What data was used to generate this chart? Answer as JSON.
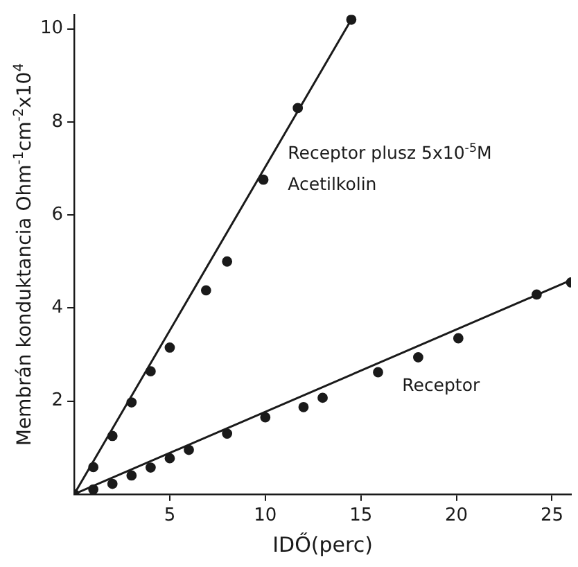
{
  "chart_data": {
    "type": "scatter",
    "xlabel": "IDŐ(perc)",
    "ylabel": "Membrán konduktancia Ohm$^{-1}$cm$^{-2}$x10$^{4}$",
    "xlim": [
      0,
      26
    ],
    "ylim": [
      0,
      10.3
    ],
    "xticks": [
      5,
      10,
      15,
      20,
      25
    ],
    "yticks": [
      2,
      4,
      6,
      8,
      10
    ],
    "grid": false,
    "legend": false,
    "marker": "circle",
    "series": [
      {
        "color": "#1a1a1a",
        "x": [
          0,
          1,
          2,
          3,
          4,
          5,
          6.9,
          8,
          9.9,
          11.7,
          14.5
        ],
        "values": [
          0,
          0.58,
          1.25,
          1.97,
          2.64,
          3.15,
          4.38,
          5.0,
          6.76,
          8.3,
          10.2
        ]
      },
      {
        "color": "#1a1a1a",
        "x": [
          1,
          2,
          3,
          4,
          5,
          6,
          8,
          10,
          12,
          13,
          15.9,
          18,
          20.1,
          24.2,
          26
        ],
        "values": [
          0.1,
          0.22,
          0.4,
          0.57,
          0.77,
          0.95,
          1.3,
          1.65,
          1.87,
          2.07,
          2.62,
          2.94,
          3.35,
          4.29,
          4.55
        ]
      },
      {
        "type": "line",
        "color": "#1a1a1a",
        "marker": "none",
        "line_style": "solid",
        "x": [
          0,
          14.5
        ],
        "values": [
          0,
          10.2
        ]
      },
      {
        "type": "line",
        "color": "#1a1a1a",
        "marker": "none",
        "line_style": "solid",
        "x": [
          0,
          26
        ],
        "values": [
          0,
          4.6
        ]
      }
    ],
    "annotations": [
      "Receptor plusz 5x10$^{-5}$M",
      "Acetilkolin",
      "Receptor"
    ]
  }
}
